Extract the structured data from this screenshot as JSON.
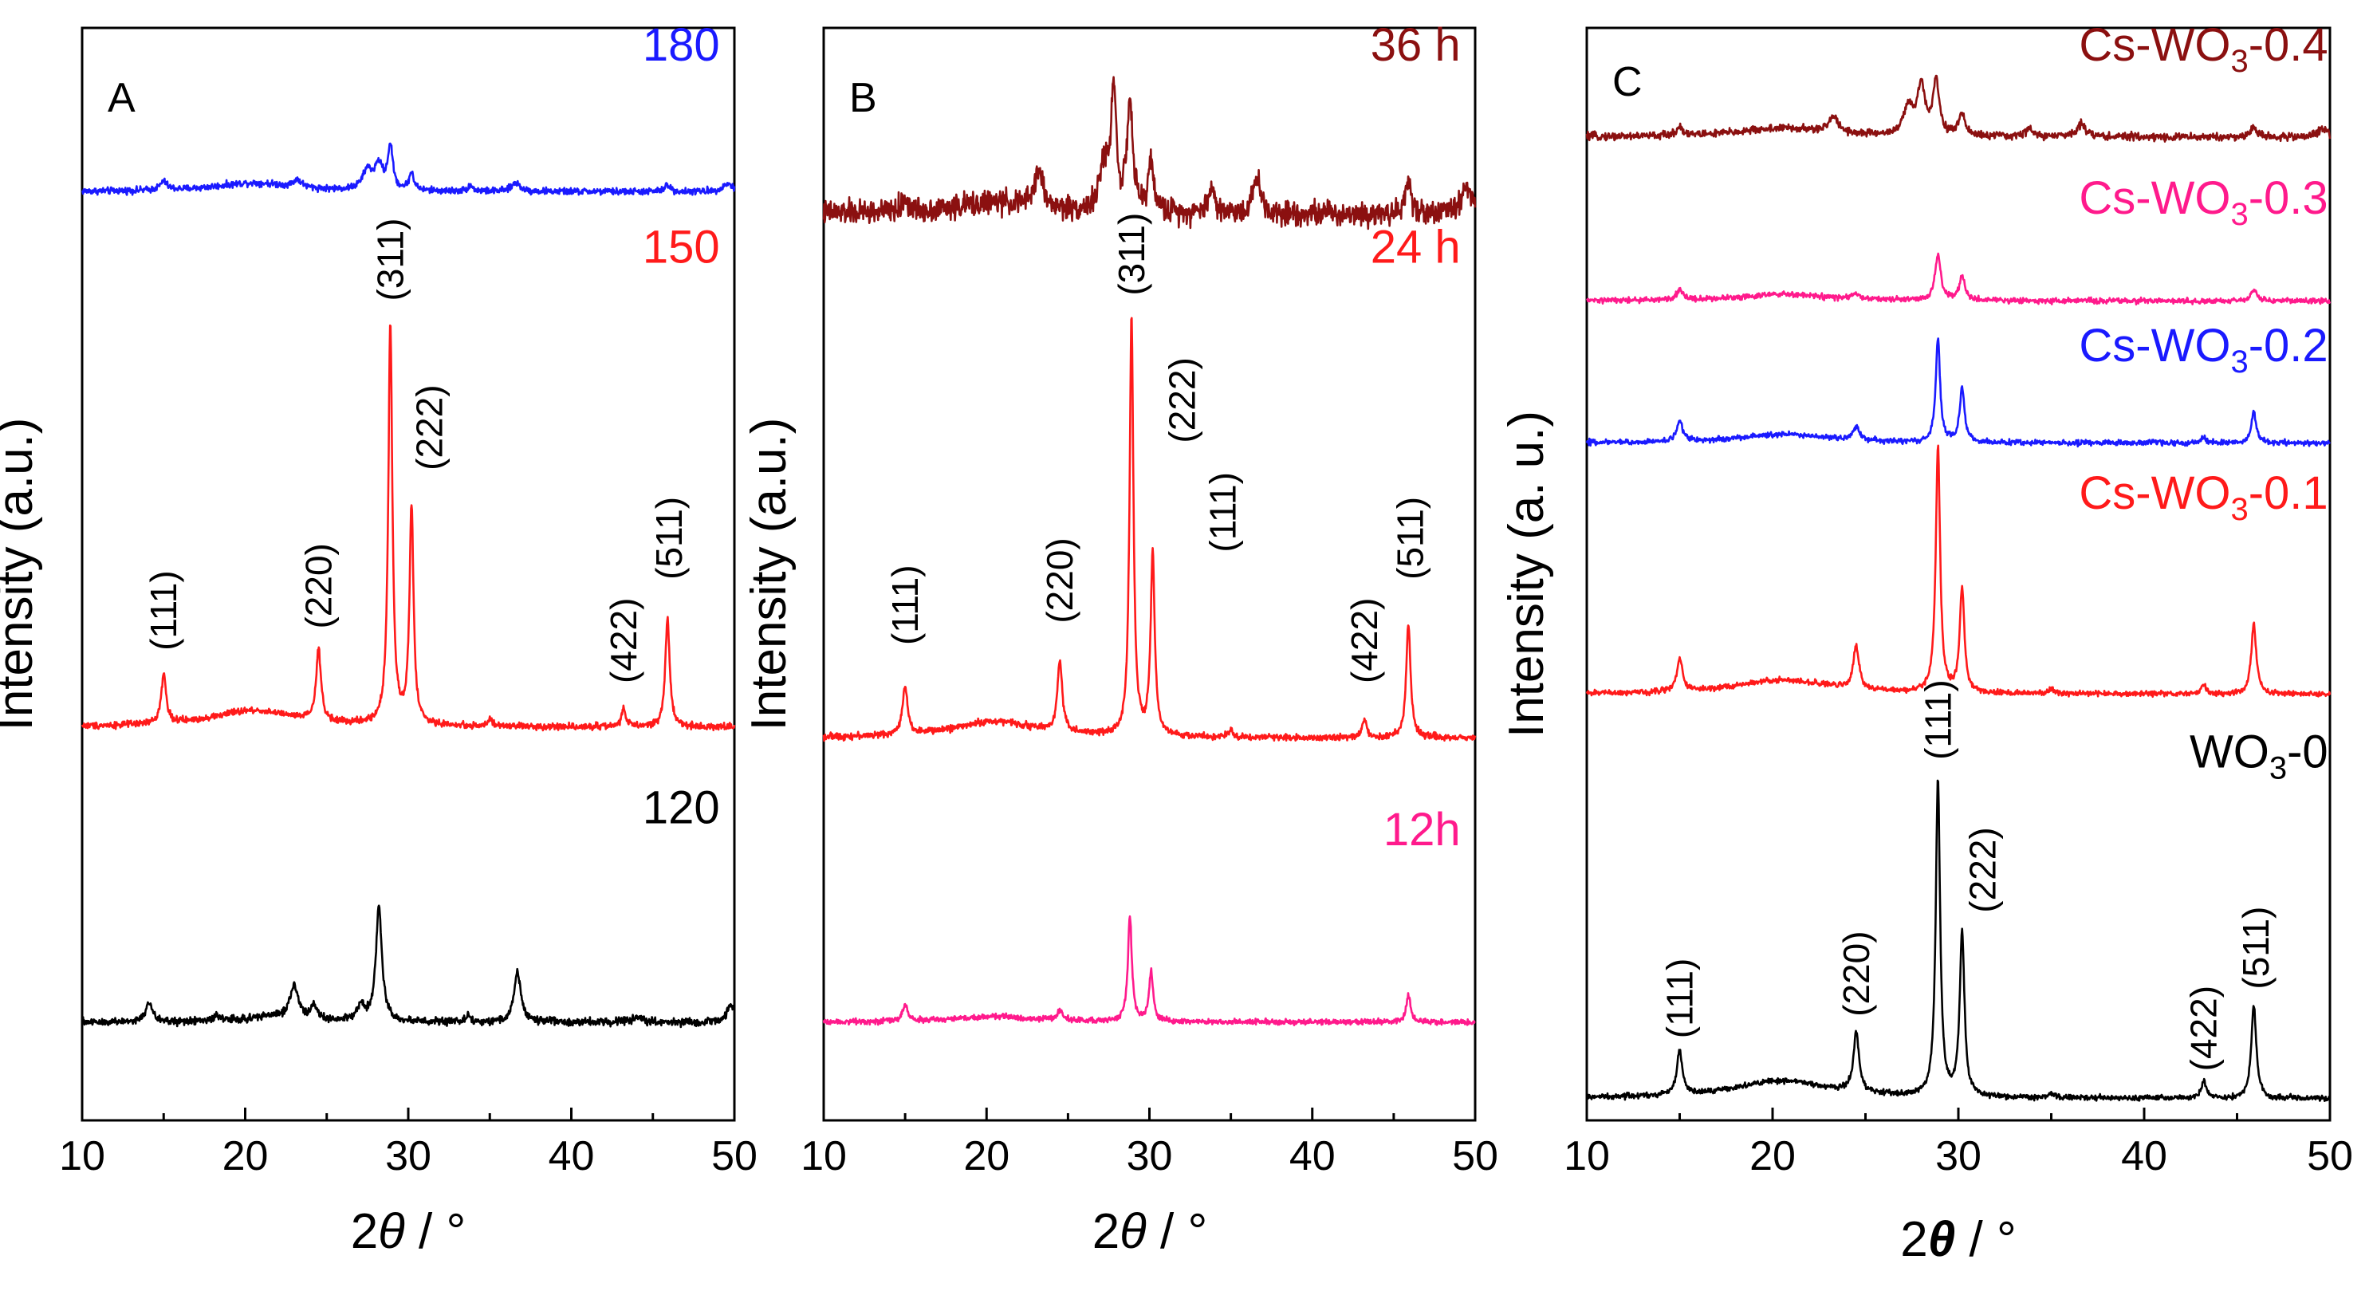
{
  "chart_data": [
    {
      "type": "line",
      "panel_label": "A",
      "xlabel_main": "2",
      "xlabel_theta": "θ",
      "xlabel_unit": " / °",
      "ylabel": "Intensity (a.u.)",
      "xlim": [
        10,
        50
      ],
      "ylim": [
        0,
        100
      ],
      "xticks": [
        10,
        20,
        30,
        40,
        50
      ],
      "series": [
        {
          "name": "180",
          "color": "#1a1aff",
          "baseline": 85,
          "peaks": [
            [
              15.0,
              0.8,
              0.25
            ],
            [
              20.5,
              0.8,
              3.0
            ],
            [
              23.2,
              0.7,
              0.3
            ],
            [
              27.5,
              1.8,
              0.35
            ],
            [
              28.2,
              2.2,
              0.3
            ],
            [
              28.9,
              4.0,
              0.18
            ],
            [
              30.2,
              1.6,
              0.18
            ],
            [
              33.8,
              0.5,
              0.2
            ],
            [
              36.6,
              0.8,
              0.3
            ],
            [
              45.9,
              0.6,
              0.2
            ],
            [
              49.6,
              0.7,
              0.4
            ]
          ],
          "noise": 0.3
        },
        {
          "name": "150",
          "color": "#ff1a1a",
          "baseline": 36,
          "peaks": [
            [
              15.0,
              4.5,
              0.18
            ],
            [
              20.5,
              1.5,
              3.2
            ],
            [
              24.5,
              6.5,
              0.18
            ],
            [
              28.9,
              36.5,
              0.15
            ],
            [
              30.2,
              20.0,
              0.15
            ],
            [
              35.0,
              0.6,
              0.15
            ],
            [
              43.2,
              1.7,
              0.15
            ],
            [
              45.9,
              10.0,
              0.16
            ]
          ],
          "noise": 0.3
        },
        {
          "name": "120",
          "color": "#000000",
          "baseline": 9,
          "peaks": [
            [
              14.1,
              1.7,
              0.25
            ],
            [
              18.3,
              0.5,
              0.3
            ],
            [
              21.5,
              0.5,
              1.5
            ],
            [
              23.0,
              3.2,
              0.3
            ],
            [
              24.2,
              1.3,
              0.25
            ],
            [
              27.1,
              1.5,
              0.25
            ],
            [
              28.2,
              10.5,
              0.22
            ],
            [
              33.7,
              0.5,
              0.2
            ],
            [
              36.7,
              4.5,
              0.25
            ],
            [
              44.0,
              0.5,
              0.3
            ],
            [
              49.8,
              1.5,
              0.3
            ]
          ],
          "noise": 0.35
        }
      ],
      "labels": [
        {
          "text": "180",
          "color": "#1a1aff",
          "x": 49.1,
          "y": 97.0
        },
        {
          "text": "150",
          "color": "#ff1a1a",
          "x": 49.1,
          "y": 78.5
        },
        {
          "text": "120",
          "color": "#000000",
          "x": 49.1,
          "y": 27.2
        }
      ],
      "annotations": [
        {
          "text": "(111)",
          "x": 15.0,
          "y": 43.0
        },
        {
          "text": "(220)",
          "x": 24.5,
          "y": 45.0
        },
        {
          "text": "(311)",
          "x": 28.9,
          "y": 75.0
        },
        {
          "text": "(222)",
          "x": 31.3,
          "y": 59.5
        },
        {
          "text": "(422)",
          "x": 43.2,
          "y": 40.0
        },
        {
          "text": "(511)",
          "x": 46.0,
          "y": 49.5
        }
      ]
    },
    {
      "type": "line",
      "panel_label": "B",
      "xlabel_main": "2",
      "xlabel_theta": "θ",
      "xlabel_unit": " / °",
      "ylabel": "Intensity (a.u.)",
      "xlim": [
        10,
        50
      ],
      "ylim": [
        0,
        100
      ],
      "xticks": [
        10,
        20,
        30,
        40,
        50
      ],
      "series": [
        {
          "name": "36 h",
          "color": "#8b1010",
          "baseline": 83,
          "peaks": [
            [
              15.0,
              1.2,
              0.2
            ],
            [
              20.5,
              1.0,
              3.0
            ],
            [
              23.2,
              3.5,
              0.3
            ],
            [
              27.2,
              4.0,
              0.3
            ],
            [
              27.8,
              11.0,
              0.2
            ],
            [
              28.8,
              10.0,
              0.2
            ],
            [
              30.1,
              4.5,
              0.2
            ],
            [
              33.8,
              2.5,
              0.2
            ],
            [
              36.6,
              3.5,
              0.25
            ],
            [
              45.9,
              3.0,
              0.2
            ],
            [
              49.5,
              2.5,
              0.4
            ]
          ],
          "noise": 1.1
        },
        {
          "name": "24 h",
          "color": "#ff1a1a",
          "baseline": 35,
          "peaks": [
            [
              15.0,
              4.5,
              0.18
            ],
            [
              20.5,
              1.5,
              3.2
            ],
            [
              24.5,
              6.5,
              0.18
            ],
            [
              28.9,
              38.5,
              0.14
            ],
            [
              30.2,
              16.5,
              0.15
            ],
            [
              35.0,
              0.6,
              0.15
            ],
            [
              43.2,
              1.7,
              0.15
            ],
            [
              45.9,
              10.5,
              0.16
            ]
          ],
          "noise": 0.3
        },
        {
          "name": "12h",
          "color": "#ff1a8c",
          "baseline": 9,
          "peaks": [
            [
              15.0,
              1.5,
              0.18
            ],
            [
              20.5,
              0.5,
              3.0
            ],
            [
              24.5,
              0.9,
              0.2
            ],
            [
              28.8,
              9.5,
              0.15
            ],
            [
              30.1,
              4.5,
              0.15
            ],
            [
              45.9,
              2.5,
              0.15
            ]
          ],
          "noise": 0.25
        }
      ],
      "labels": [
        {
          "text": "36 h",
          "color": "#8b1010",
          "x": 49.1,
          "y": 97.0
        },
        {
          "text": "24 h",
          "color": "#ff1a1a",
          "x": 49.1,
          "y": 78.5
        },
        {
          "text": "12h",
          "color": "#ff1a8c",
          "x": 49.1,
          "y": 25.2
        }
      ],
      "annotations": [
        {
          "text": "(111)",
          "x": 15.0,
          "y": 43.5
        },
        {
          "text": "(220)",
          "x": 24.5,
          "y": 45.5
        },
        {
          "text": "(311)",
          "x": 28.9,
          "y": 75.5
        },
        {
          "text": "(222)",
          "x": 32.0,
          "y": 62.0
        },
        {
          "text": "(111)",
          "x": 34.5,
          "y": 52.0
        },
        {
          "text": "(422)",
          "x": 43.2,
          "y": 40.0
        },
        {
          "text": "(511)",
          "x": 46.0,
          "y": 49.5
        }
      ]
    },
    {
      "type": "line",
      "panel_label": "C",
      "xlabel_main": "2",
      "xlabel_theta": "θ",
      "xlabel_unit": " / °",
      "ylabel": "Intensity (a. u.)",
      "xlim": [
        10,
        50
      ],
      "ylim": [
        0,
        100
      ],
      "xticks": [
        10,
        20,
        30,
        40,
        50
      ],
      "series": [
        {
          "name": "Cs-WO3-0.4",
          "color": "#8b1010",
          "baseline": 90,
          "peaks": [
            [
              15.0,
              0.8,
              0.2
            ],
            [
              20.5,
              0.8,
              3.0
            ],
            [
              23.3,
              1.5,
              0.3
            ],
            [
              27.3,
              2.5,
              0.3
            ],
            [
              28.0,
              4.5,
              0.25
            ],
            [
              28.8,
              5.0,
              0.2
            ],
            [
              30.2,
              2.0,
              0.2
            ],
            [
              33.8,
              0.8,
              0.2
            ],
            [
              36.6,
              1.2,
              0.3
            ],
            [
              45.9,
              0.9,
              0.2
            ],
            [
              49.6,
              0.8,
              0.3
            ]
          ],
          "noise": 0.35
        },
        {
          "name": "Cs-WO3-0.3",
          "color": "#ff1a8c",
          "baseline": 75,
          "peaks": [
            [
              15.0,
              0.9,
              0.2
            ],
            [
              20.5,
              0.6,
              3.0
            ],
            [
              24.5,
              0.5,
              0.2
            ],
            [
              28.9,
              4.2,
              0.18
            ],
            [
              30.2,
              2.2,
              0.18
            ],
            [
              45.9,
              1.0,
              0.2
            ]
          ],
          "noise": 0.25
        },
        {
          "name": "Cs-WO3-0.2",
          "color": "#1a1aff",
          "baseline": 62,
          "peaks": [
            [
              15.0,
              2.0,
              0.18
            ],
            [
              20.5,
              0.8,
              3.0
            ],
            [
              24.5,
              1.2,
              0.2
            ],
            [
              28.9,
              9.5,
              0.14
            ],
            [
              30.2,
              5.0,
              0.15
            ],
            [
              43.2,
              0.4,
              0.2
            ],
            [
              45.9,
              2.8,
              0.16
            ]
          ],
          "noise": 0.25
        },
        {
          "name": "Cs-WO3-0.1",
          "color": "#ff1a1a",
          "baseline": 39,
          "peaks": [
            [
              15.0,
              3.0,
              0.18
            ],
            [
              20.5,
              1.3,
              3.2
            ],
            [
              24.5,
              4.0,
              0.18
            ],
            [
              28.9,
              22.5,
              0.14
            ],
            [
              30.2,
              9.5,
              0.15
            ],
            [
              35.0,
              0.4,
              0.15
            ],
            [
              43.2,
              0.8,
              0.15
            ],
            [
              45.9,
              6.5,
              0.16
            ]
          ],
          "noise": 0.25
        },
        {
          "name": "WO3-0",
          "color": "#000000",
          "baseline": 2,
          "peaks": [
            [
              15.0,
              4.0,
              0.18
            ],
            [
              20.5,
              1.6,
              3.2
            ],
            [
              24.5,
              5.5,
              0.18
            ],
            [
              28.9,
              29.0,
              0.14
            ],
            [
              30.2,
              15.0,
              0.15
            ],
            [
              35.0,
              0.4,
              0.15
            ],
            [
              43.2,
              1.7,
              0.15
            ],
            [
              45.9,
              8.5,
              0.16
            ]
          ],
          "noise": 0.25
        }
      ],
      "labels": [
        {
          "text": "Cs-WO",
          "sub": "3",
          "tail": "-0.4",
          "color": "#8b1010",
          "x": 49.9,
          "y": 97.0
        },
        {
          "text": "Cs-WO",
          "sub": "3",
          "tail": "-0.3",
          "color": "#ff1a8c",
          "x": 49.9,
          "y": 83.0
        },
        {
          "text": "Cs-WO",
          "sub": "3",
          "tail": "-0.2",
          "color": "#1a1aff",
          "x": 49.9,
          "y": 69.5
        },
        {
          "text": "Cs-WO",
          "sub": "3",
          "tail": "-0.1",
          "color": "#ff1a1a",
          "x": 49.9,
          "y": 56.0
        },
        {
          "text": "WO",
          "sub": "3",
          "tail": "-0",
          "color": "#000000",
          "x": 49.9,
          "y": 32.3
        }
      ],
      "annotations": [
        {
          "text": "(111)",
          "x": 15.0,
          "y": 7.5
        },
        {
          "text": "(220)",
          "x": 24.5,
          "y": 9.5
        },
        {
          "text": "(111)",
          "x": 28.9,
          "y": 33.0
        },
        {
          "text": "(222)",
          "x": 31.3,
          "y": 19.0
        },
        {
          "text": "(422)",
          "x": 43.2,
          "y": 4.5
        },
        {
          "text": "(511)",
          "x": 46.0,
          "y": 12.0
        }
      ]
    }
  ]
}
